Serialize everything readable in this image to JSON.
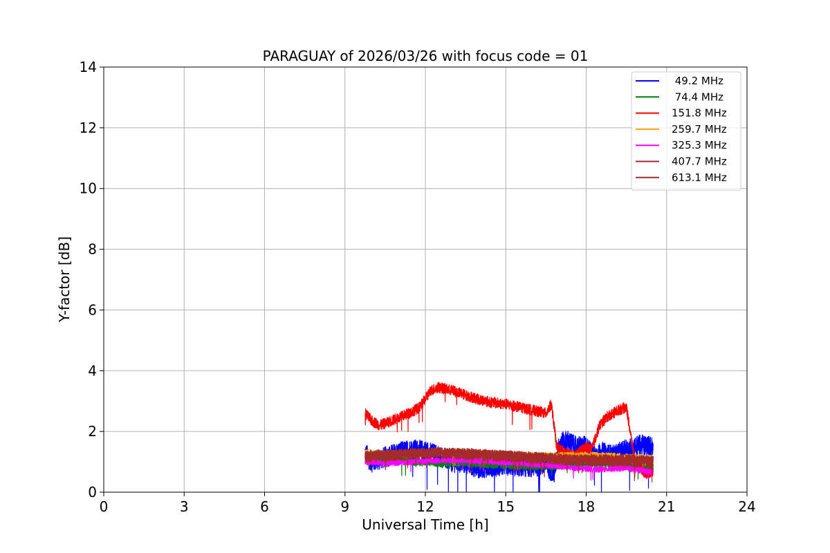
{
  "chart_data": {
    "type": "line",
    "title": "PARAGUAY of 2026/03/26 with focus code = 01",
    "xlabel": "Universal Time [h]",
    "ylabel": "Y-factor [dB]",
    "xlim": [
      0,
      24
    ],
    "ylim": [
      0,
      14
    ],
    "xticks": [
      0,
      3,
      6,
      9,
      12,
      15,
      18,
      21,
      24
    ],
    "yticks": [
      0,
      2,
      4,
      6,
      8,
      10,
      12,
      14
    ],
    "grid": true,
    "legend_position": "top-right",
    "series": [
      {
        "name": " 49.2 MHz",
        "color": "#0000ff",
        "x": [
          9.75,
          10.0,
          10.5,
          11.0,
          11.5,
          12.0,
          12.5,
          13.0,
          13.5,
          14.0,
          14.5,
          15.0,
          15.5,
          16.0,
          16.5,
          16.8,
          17.0,
          17.3,
          17.6,
          18.0,
          18.3,
          18.6,
          19.0,
          19.5,
          20.0,
          20.5
        ],
        "values": [
          1.3,
          1.0,
          1.15,
          1.3,
          1.4,
          1.35,
          1.2,
          1.0,
          0.95,
          0.8,
          0.85,
          0.9,
          0.85,
          0.85,
          0.9,
          0.6,
          1.6,
          1.7,
          1.5,
          1.5,
          1.2,
          1.3,
          1.2,
          1.4,
          1.55,
          1.5
        ],
        "band": 0.35
      },
      {
        "name": " 74.4 MHz",
        "color": "#008000",
        "x": [
          9.75,
          10.5,
          11.5,
          12.5,
          13.5,
          14.5,
          15.5,
          16.5,
          17.5,
          18.5,
          19.5,
          20.5
        ],
        "values": [
          1.15,
          1.05,
          1.0,
          0.95,
          0.95,
          0.9,
          0.85,
          0.85,
          0.9,
          0.95,
          0.85,
          0.8
        ],
        "band": 0.12
      },
      {
        "name": "151.8 MHz",
        "color": "#ff0000",
        "x": [
          9.75,
          10.0,
          10.3,
          10.6,
          11.0,
          11.5,
          11.8,
          12.2,
          12.5,
          13.0,
          13.5,
          14.0,
          14.5,
          15.0,
          15.5,
          16.0,
          16.5,
          16.7,
          16.9,
          17.2,
          17.6,
          18.0,
          18.2,
          18.5,
          18.8,
          19.2,
          19.5,
          19.8,
          20.2,
          20.5
        ],
        "values": [
          2.6,
          2.35,
          2.2,
          2.3,
          2.45,
          2.65,
          2.8,
          3.35,
          3.45,
          3.35,
          3.2,
          3.05,
          2.95,
          2.9,
          2.8,
          2.7,
          2.6,
          2.9,
          1.5,
          1.3,
          1.2,
          1.5,
          1.4,
          2.2,
          2.5,
          2.7,
          2.8,
          1.1,
          0.6,
          0.7
        ],
        "band": 0.18
      },
      {
        "name": "259.7 MHz",
        "color": "#ffa500",
        "x": [
          9.75,
          10.5,
          11.5,
          12.5,
          13.5,
          14.5,
          15.5,
          16.5,
          17.5,
          18.5,
          19.5,
          20.5
        ],
        "values": [
          1.3,
          1.25,
          1.25,
          1.3,
          1.3,
          1.25,
          1.2,
          1.2,
          1.2,
          1.2,
          1.15,
          1.1
        ],
        "band": 0.12
      },
      {
        "name": "325.3 MHz",
        "color": "#ff00ff",
        "x": [
          9.75,
          10.5,
          11.5,
          12.5,
          13.5,
          14.5,
          15.5,
          16.5,
          17.5,
          18.5,
          19.5,
          20.5
        ],
        "values": [
          1.0,
          0.95,
          1.0,
          1.05,
          1.05,
          1.0,
          0.95,
          0.9,
          0.8,
          0.75,
          0.8,
          0.65
        ],
        "band": 0.1
      },
      {
        "name": "407.7 MHz",
        "color": "#a52a2a",
        "x": [
          9.75,
          10.5,
          11.5,
          12.5,
          13.5,
          14.5,
          15.5,
          16.5,
          17.5,
          18.5,
          19.5,
          20.5
        ],
        "values": [
          1.2,
          1.25,
          1.3,
          1.3,
          1.3,
          1.25,
          1.2,
          1.15,
          1.1,
          1.1,
          1.1,
          1.05
        ],
        "band": 0.15
      },
      {
        "name": "613.1 MHz",
        "color": "#a52a2a",
        "x": [
          9.75,
          10.5,
          11.5,
          12.5,
          13.5,
          14.5,
          15.5,
          16.5,
          17.5,
          18.5,
          19.5,
          20.5
        ],
        "values": [
          1.15,
          1.2,
          1.25,
          1.3,
          1.25,
          1.2,
          1.15,
          1.1,
          1.05,
          1.05,
          1.0,
          1.0
        ],
        "band": 0.18
      }
    ]
  }
}
